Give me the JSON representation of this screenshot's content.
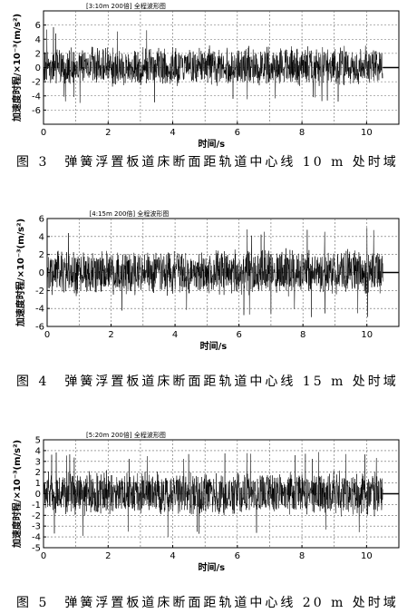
{
  "chart_data": [
    {
      "type": "line",
      "title": "[3:10m 200倍] 全程波形图",
      "xlabel": "时间/s",
      "ylabel": "加速度时程/×10⁻³(m/s²)",
      "xlim": [
        0,
        11
      ],
      "ylim": [
        -8,
        8
      ],
      "xticks": [
        0,
        2,
        4,
        6,
        8,
        10
      ],
      "yticks": [
        -6,
        -4,
        -2,
        0,
        2,
        4,
        6
      ],
      "grid": true,
      "signal_end_s": 10.5,
      "amplitude_range": [
        -5,
        6
      ],
      "caption": "图 3　弹簧浮置板道床断面距轨道中心线 10 m 处时域"
    },
    {
      "type": "line",
      "title": "[4:15m 200倍] 全程波形图",
      "xlabel": "时间/s",
      "ylabel": "加速度时程/×10⁻³(m/s²)",
      "xlim": [
        0,
        11
      ],
      "ylim": [
        -6,
        6
      ],
      "xticks": [
        0,
        2,
        4,
        6,
        8,
        10
      ],
      "yticks": [
        -6,
        -4,
        -2,
        0,
        2,
        4,
        6
      ],
      "grid": true,
      "signal_end_s": 10.5,
      "amplitude_range": [
        -5,
        5
      ],
      "caption": "图 4　弹簧浮置板道床断面距轨道中心线 15 m 处时域"
    },
    {
      "type": "line",
      "title": "[5:20m 200倍] 全程波形图",
      "xlabel": "时间/s",
      "ylabel": "加速度时程/×10⁻³(m/s²)",
      "xlim": [
        0,
        11
      ],
      "ylim": [
        -5,
        5
      ],
      "xticks": [
        0,
        2,
        4,
        6,
        8,
        10
      ],
      "yticks": [
        -5,
        -4,
        -3,
        -2,
        -1,
        0,
        1,
        2,
        3,
        4,
        5
      ],
      "grid": true,
      "signal_end_s": 10.5,
      "amplitude_range": [
        -4,
        4
      ],
      "caption": "图 5　弹簧浮置板道床断面距轨道中心线 20 m 处时域"
    }
  ]
}
